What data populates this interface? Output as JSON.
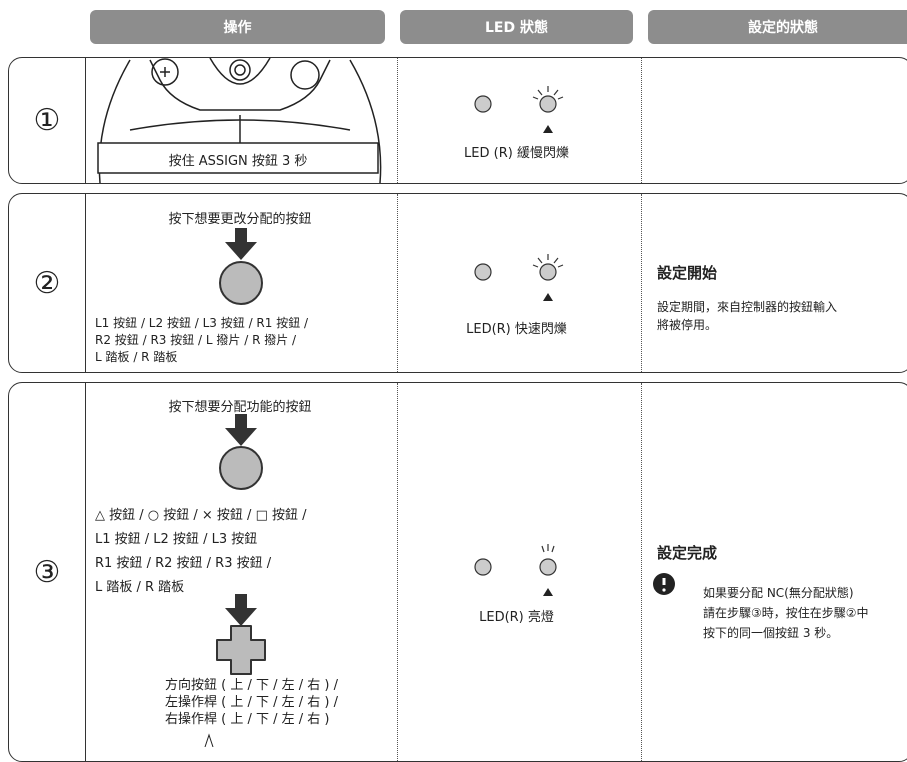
{
  "header": {
    "columns": [
      "操作",
      "LED 狀態",
      "設定的狀態"
    ]
  },
  "rows": [
    {
      "step": "①",
      "operation": {
        "label": "按住 ASSIGN 按鈕 3 秒"
      },
      "led": "LED (R) 緩慢閃爍"
    },
    {
      "step": "②",
      "operation": {
        "instruction": "按下想要更改分配的按鈕",
        "buttons": [
          "L1 按鈕 / L2 按鈕 / L3 按鈕 / R1 按鈕 /",
          "R2 按鈕 / R3 按鈕 / L 撥片 /  R 撥片 /",
          "L 踏板 / R 踏板"
        ]
      },
      "led": "LED(R) 快速閃爍",
      "status": {
        "title": "設定開始",
        "text": [
          "設定期間，來自控制器的按鈕輸入",
          "將被停用。"
        ]
      }
    },
    {
      "step": "③",
      "operation": {
        "instruction": "按下想要分配功能的按鈕",
        "buttons": [
          "△ 按鈕 / ○ 按鈕 / × 按鈕 / □ 按鈕 /",
          "L1 按鈕 / L2 按鈕 / L3 按鈕",
          "R1 按鈕 / R2 按鈕 / R3 按鈕 /",
          "L 踏板 / R 踏板"
        ],
        "directions": [
          "方向按鈕 ( 上 / 下 / 左 / 右 ) /",
          "左操作桿 ( 上 / 下 / 左 / 右 ) /",
          "右操作桿 ( 上 / 下 / 左 / 右 )"
        ]
      },
      "led": "LED(R) 亮燈",
      "status": {
        "title": "設定完成",
        "note": [
          "如果要分配 NC(無分配狀態)",
          "請在步驟③時，按住在步驟②中",
          "按下的同一個按鈕 3 秒。"
        ]
      }
    }
  ]
}
